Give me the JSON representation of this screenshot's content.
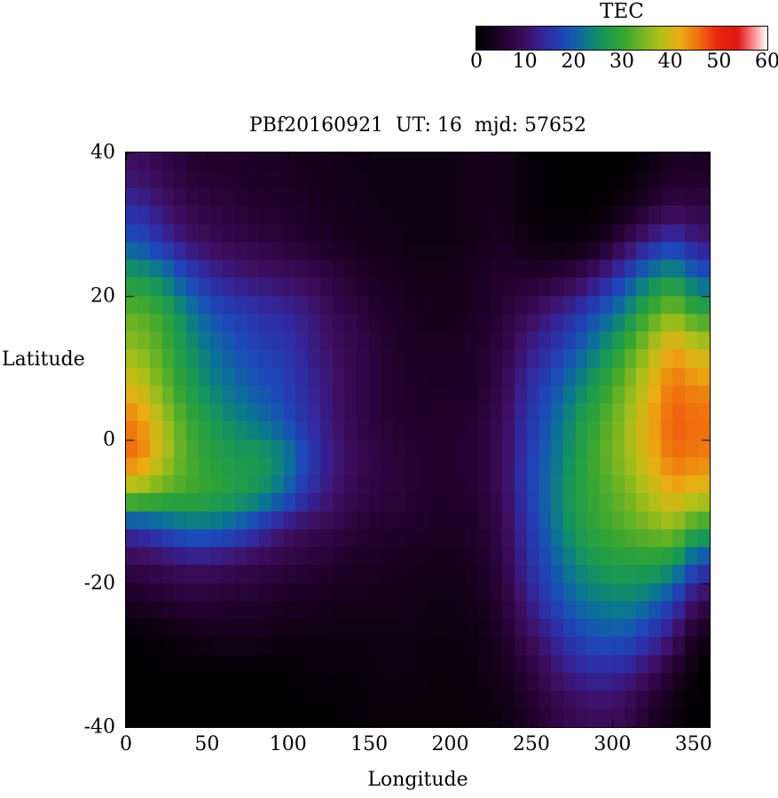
{
  "title": "PBf20160921  UT: 16  mjd: 57652",
  "colorbar": {
    "label": "TEC",
    "min": 0,
    "max": 60,
    "ticks": [
      0,
      10,
      20,
      30,
      40,
      50,
      60
    ]
  },
  "axes": {
    "xlabel": "Longitude",
    "ylabel": "Latitude",
    "xlim": [
      0,
      360
    ],
    "ylim": [
      -40,
      40
    ],
    "x_ticks": [
      0,
      50,
      100,
      150,
      200,
      250,
      300,
      350
    ],
    "y_ticks": [
      40,
      20,
      0,
      -20,
      -40
    ]
  },
  "chart_data": {
    "type": "heatmap",
    "title": "PBf20160921  UT: 16  mjd: 57652",
    "xlabel": "Longitude",
    "ylabel": "Latitude",
    "colorbar_label": "TEC",
    "xlim": [
      0,
      360
    ],
    "ylim": [
      -40,
      40
    ],
    "zlim": [
      0,
      60
    ],
    "x_centers": [
      7.5,
      22.5,
      37.5,
      52.5,
      67.5,
      82.5,
      97.5,
      112.5,
      127.5,
      142.5,
      157.5,
      172.5,
      187.5,
      202.5,
      217.5,
      232.5,
      247.5,
      262.5,
      277.5,
      292.5,
      307.5,
      322.5,
      337.5,
      352.5
    ],
    "y_centers": [
      37.5,
      32.5,
      27.5,
      22.5,
      17.5,
      12.5,
      7.5,
      2.5,
      -2.5,
      -7.5,
      -12.5,
      -17.5,
      -22.5,
      -27.5,
      -32.5,
      -37.5
    ],
    "note": "values[row][col]; rows ordered from +37.5 (top) to -37.5 (bottom); TEC units",
    "values": [
      [
        10,
        8,
        6,
        5,
        5,
        4,
        4,
        3,
        3,
        2,
        2,
        2,
        2,
        2,
        3,
        3,
        1,
        0,
        0,
        0,
        0,
        2,
        4,
        4
      ],
      [
        14,
        11,
        8,
        7,
        6,
        5,
        5,
        4,
        3,
        3,
        2,
        2,
        2,
        2,
        3,
        3,
        1,
        0,
        0,
        0,
        2,
        5,
        8,
        7
      ],
      [
        19,
        15,
        11,
        9,
        8,
        7,
        6,
        5,
        4,
        3,
        3,
        2,
        2,
        2,
        3,
        4,
        2,
        1,
        1,
        3,
        8,
        13,
        16,
        12
      ],
      [
        27,
        24,
        18,
        14,
        12,
        11,
        10,
        9,
        7,
        5,
        4,
        3,
        3,
        3,
        4,
        5,
        5,
        6,
        8,
        12,
        17,
        23,
        27,
        20
      ],
      [
        33,
        30,
        24,
        19,
        17,
        15,
        14,
        12,
        9,
        7,
        5,
        4,
        3,
        3,
        4,
        6,
        9,
        12,
        15,
        19,
        24,
        31,
        36,
        30
      ],
      [
        36,
        32,
        26,
        22,
        19,
        17,
        16,
        13,
        10,
        8,
        6,
        4,
        4,
        4,
        5,
        7,
        12,
        15,
        19,
        24,
        30,
        37,
        43,
        39
      ],
      [
        40,
        34,
        28,
        24,
        21,
        19,
        17,
        14,
        11,
        8,
        6,
        5,
        4,
        4,
        5,
        8,
        14,
        18,
        23,
        28,
        34,
        40,
        46,
        44
      ],
      [
        45,
        38,
        31,
        27,
        24,
        22,
        19,
        15,
        11,
        8,
        6,
        5,
        5,
        5,
        6,
        9,
        15,
        20,
        26,
        31,
        36,
        42,
        47,
        46
      ],
      [
        46,
        39,
        32,
        29,
        27,
        27,
        24,
        17,
        12,
        9,
        7,
        6,
        5,
        5,
        6,
        9,
        16,
        21,
        27,
        32,
        36,
        41,
        46,
        45
      ],
      [
        36,
        33,
        31,
        30,
        28,
        26,
        21,
        15,
        11,
        8,
        7,
        6,
        5,
        5,
        6,
        9,
        16,
        22,
        28,
        31,
        34,
        38,
        42,
        40
      ],
      [
        15,
        18,
        21,
        21,
        19,
        15,
        11,
        9,
        8,
        6,
        5,
        5,
        4,
        4,
        5,
        8,
        15,
        21,
        27,
        30,
        32,
        34,
        36,
        29
      ],
      [
        8,
        9,
        10,
        10,
        9,
        8,
        7,
        6,
        5,
        4,
        4,
        3,
        3,
        3,
        4,
        7,
        14,
        19,
        24,
        27,
        28,
        28,
        26,
        17
      ],
      [
        4,
        5,
        6,
        6,
        5,
        5,
        4,
        4,
        3,
        3,
        3,
        3,
        2,
        2,
        3,
        6,
        12,
        17,
        21,
        23,
        24,
        22,
        17,
        9
      ],
      [
        0,
        1,
        2,
        3,
        3,
        3,
        2,
        2,
        2,
        2,
        2,
        2,
        2,
        2,
        2,
        4,
        9,
        13,
        17,
        19,
        19,
        16,
        11,
        3
      ],
      [
        0,
        0,
        0,
        0,
        0,
        0,
        0,
        1,
        1,
        1,
        2,
        2,
        1,
        1,
        2,
        3,
        6,
        10,
        13,
        14,
        13,
        10,
        5,
        0
      ],
      [
        0,
        0,
        0,
        0,
        0,
        0,
        0,
        0,
        0,
        1,
        1,
        1,
        1,
        1,
        1,
        2,
        4,
        7,
        9,
        10,
        9,
        5,
        2,
        0
      ]
    ],
    "colormap_stops": [
      [
        0,
        0,
        0,
        0
      ],
      [
        5,
        34,
        0,
        44
      ],
      [
        10,
        62,
        14,
        96
      ],
      [
        14,
        50,
        40,
        158
      ],
      [
        18,
        28,
        72,
        186
      ],
      [
        22,
        10,
        115,
        150
      ],
      [
        26,
        22,
        150,
        88
      ],
      [
        30,
        50,
        165,
        52
      ],
      [
        34,
        112,
        180,
        34
      ],
      [
        38,
        180,
        192,
        24
      ],
      [
        42,
        235,
        172,
        18
      ],
      [
        46,
        240,
        108,
        14
      ],
      [
        50,
        232,
        36,
        14
      ],
      [
        54,
        226,
        24,
        20
      ],
      [
        57,
        246,
        132,
        132
      ],
      [
        60,
        255,
        255,
        255
      ]
    ],
    "legend_position": "top-right-colorbar",
    "grid": false
  }
}
